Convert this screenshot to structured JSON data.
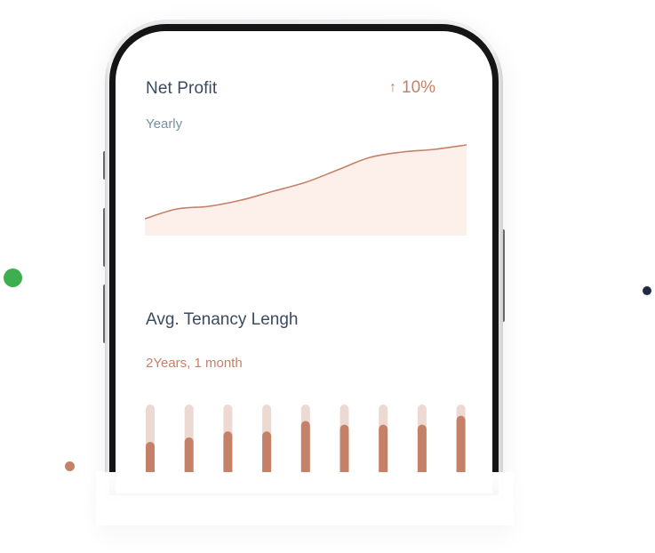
{
  "colors": {
    "accent": "#c58168",
    "accent_light": "#ecd9d2",
    "area_fill": "#fdf0ea",
    "heading": "#3b4b5f",
    "muted": "#7a8fa3",
    "dot_green": "#3daf51",
    "dot_navy": "#1f2a44",
    "dot_terra": "#c58168"
  },
  "net_profit": {
    "title": "Net Profit",
    "change_icon": "arrow-up-icon",
    "change_label": "10%",
    "period": "Yearly"
  },
  "tenancy": {
    "title": "Avg. Tenancy Lengh",
    "value": "2Years, 1 month"
  },
  "chart_data": [
    {
      "type": "area",
      "title": "",
      "xlabel": "",
      "ylabel": "",
      "grid": false,
      "ylim": [
        0,
        1
      ],
      "y": [
        0.17,
        0.28,
        0.31,
        0.38,
        0.48,
        0.58,
        0.72,
        0.86,
        0.92,
        0.95,
        1.0
      ]
    },
    {
      "type": "bar",
      "title": "",
      "xlabel": "",
      "ylabel": "",
      "grid": false,
      "ylim": [
        0,
        1
      ],
      "values": [
        0.5,
        0.56,
        0.64,
        0.64,
        0.78,
        0.73,
        0.73,
        0.73,
        0.85
      ]
    }
  ]
}
